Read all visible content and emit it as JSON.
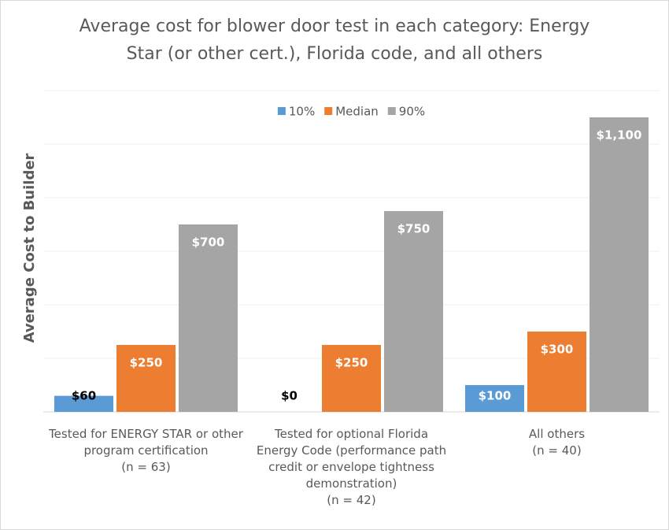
{
  "chart_data": {
    "type": "bar",
    "title": "Average cost for blower door test in each category: Energy Star (or other cert.), Florida code, and all others",
    "y_label": "Average Cost to Builder",
    "categories": [
      "Tested for ENERGY STAR or other program certification\n(n = 63)",
      "Tested for optional Florida Energy Code (performance path credit or envelope tightness demonstration)\n(n = 42)",
      "All others\n(n = 40)"
    ],
    "series": [
      {
        "name": "10%",
        "color": "#5b9bd5",
        "values": [
          60,
          0,
          100
        ],
        "value_labels": [
          "$60",
          "$0",
          "$100"
        ]
      },
      {
        "name": "Median",
        "color": "#ed7d31",
        "values": [
          250,
          250,
          300
        ],
        "value_labels": [
          "$250",
          "$250",
          "$300"
        ]
      },
      {
        "name": "90%",
        "color": "#a5a5a5",
        "values": [
          700,
          750,
          1100
        ],
        "value_labels": [
          "$700",
          "$750",
          "$1,100"
        ]
      }
    ],
    "ylim": [
      0,
      1200
    ],
    "yticks": [
      0,
      200,
      400,
      600,
      800,
      1000,
      1200
    ],
    "grid": true,
    "legend": "top"
  }
}
